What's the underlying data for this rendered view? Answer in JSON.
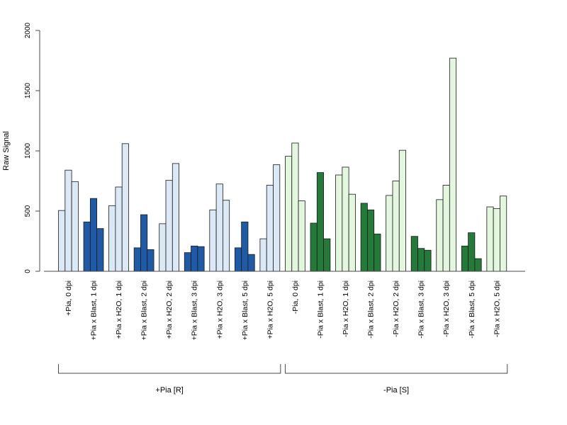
{
  "chart_data": {
    "type": "bar",
    "ylabel": "Raw Signal",
    "xlabel": "",
    "ylim": [
      0,
      2000
    ],
    "yticks": [
      0,
      500,
      1000,
      1500,
      2000
    ],
    "grid": false,
    "colors": {
      "light_blue": "#dbe8f6",
      "dark_blue": "#1f5aa6",
      "light_green": "#e3f6de",
      "dark_green": "#237a39"
    },
    "categories": [
      "+Pia, 0 dpi",
      "+Pia x Blast, 1 dpi",
      "+Pia x H2O, 1 dpi",
      "+Pia x Blast, 2 dpi",
      "+Pia x H2O, 2 dpi",
      "+Pia x Blast, 3 dpi",
      "+Pia x H2O, 3 dpi",
      "+Pia x Blast, 5 dpi",
      "+Pia x H2O, 5 dpi",
      "-Pia, 0 dpi",
      "-Pia x Blast, 1 dpi",
      "-Pia x H2O, 1 dpi",
      "-Pia x Blast, 2 dpi",
      "-Pia x H2O, 2 dpi",
      "-Pia x Blast, 3 dpi",
      "-Pia x H2O, 3 dpi",
      "-Pia x Blast, 5 dpi",
      "-Pia x H2O, 5 dpi"
    ],
    "fill": [
      "light_blue",
      "dark_blue",
      "light_blue",
      "dark_blue",
      "light_blue",
      "dark_blue",
      "light_blue",
      "dark_blue",
      "light_blue",
      "light_green",
      "dark_green",
      "light_green",
      "dark_green",
      "light_green",
      "dark_green",
      "light_green",
      "dark_green",
      "light_green"
    ],
    "values": [
      [
        505,
        840,
        745
      ],
      [
        410,
        605,
        355
      ],
      [
        545,
        700,
        1060
      ],
      [
        195,
        470,
        180
      ],
      [
        395,
        755,
        895
      ],
      [
        155,
        210,
        205
      ],
      [
        510,
        725,
        590
      ],
      [
        195,
        410,
        140
      ],
      [
        270,
        715,
        885
      ],
      [
        955,
        1065,
        585
      ],
      [
        400,
        820,
        270
      ],
      [
        800,
        865,
        640
      ],
      [
        565,
        510,
        310
      ],
      [
        630,
        750,
        1005
      ],
      [
        290,
        190,
        175
      ],
      [
        595,
        715,
        1770
      ],
      [
        210,
        320,
        105
      ],
      [
        535,
        520,
        625
      ]
    ],
    "groups": [
      {
        "label": "+Pia [R]",
        "start": 0,
        "end": 8
      },
      {
        "label": "-Pia [S]",
        "start": 9,
        "end": 17
      }
    ]
  }
}
